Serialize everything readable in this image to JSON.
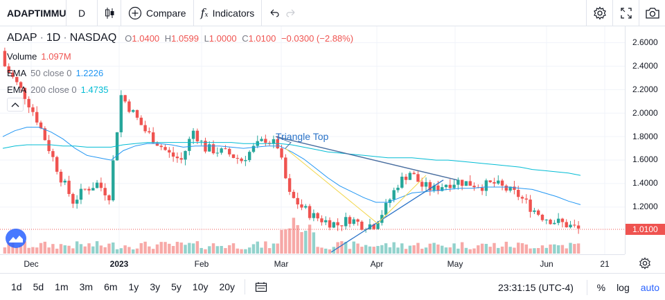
{
  "toolbar": {
    "symbol": "ADAPTIMMUNE",
    "interval": "D",
    "compare_label": "Compare",
    "indicators_label": "Indicators"
  },
  "legend": {
    "ticker": "ADAP",
    "interval": "1D",
    "exchange": "NASDAQ",
    "open_label": "O",
    "open": "1.0400",
    "high_label": "H",
    "high": "1.0599",
    "low_label": "L",
    "low": "1.0000",
    "close_label": "C",
    "close": "1.0100",
    "change": "−0.0300 (−2.88%)",
    "volume_label": "Volume",
    "volume": "1.097M",
    "ema50_label": "EMA",
    "ema50_params": "50 close 0",
    "ema50_value": "1.2226",
    "ema200_label": "EMA",
    "ema200_params": "200 close 0",
    "ema200_value": "1.4735"
  },
  "pattern_label": "Triangle Top",
  "price_axis": {
    "ticks": [
      "2.6000",
      "2.4000",
      "2.2000",
      "2.0000",
      "1.8000",
      "1.6000",
      "1.4000",
      "1.2000"
    ],
    "last_price": "1.0100"
  },
  "time_axis": {
    "ticks": [
      "Dec",
      "2023",
      "Feb",
      "Mar",
      "Apr",
      "May",
      "Jun",
      "21"
    ]
  },
  "bottom_bar": {
    "ranges": [
      "1d",
      "5d",
      "1m",
      "3m",
      "6m",
      "1y",
      "3y",
      "5y",
      "10y",
      "20y"
    ],
    "clock": "23:31:15 (UTC-4)",
    "percent_label": "%",
    "log_label": "log",
    "auto_label": "auto"
  },
  "colors": {
    "up": "#26a69a",
    "down": "#ef5350",
    "ema50": "#2196f3",
    "ema200": "#00bcd4",
    "accent": "#2962ff",
    "pattern": "#2a73c8"
  },
  "chart_data": {
    "type": "candlestick",
    "symbol": "ADAP",
    "interval": "1D",
    "ylim": [
      0.95,
      2.7
    ],
    "x": [
      "Nov 23",
      "Nov 28",
      "Dec 1",
      "Dec 5",
      "Dec 8",
      "Dec 13",
      "Dec 16",
      "Dec 21",
      "Dec 27",
      "Dec 30",
      "Jan 4",
      "Jan 9",
      "Jan 12",
      "Jan 18",
      "Jan 23",
      "Jan 26",
      "Jan 31",
      "Feb 3",
      "Feb 8",
      "Feb 13",
      "Feb 16",
      "Feb 22",
      "Feb 27",
      "Mar 2",
      "Mar 7",
      "Mar 10",
      "Mar 15",
      "Mar 20",
      "Mar 23",
      "Mar 28",
      "Mar 31",
      "Apr 5",
      "Apr 11",
      "Apr 14",
      "Apr 19",
      "Apr 24",
      "Apr 27",
      "May 2",
      "May 5",
      "May 10",
      "May 15",
      "May 18",
      "May 23",
      "May 26",
      "Jun 1",
      "Jun 6",
      "Jun 9",
      "Jun 14",
      "Jun 16"
    ],
    "close": [
      2.45,
      2.3,
      2.15,
      1.95,
      1.7,
      1.45,
      1.25,
      1.35,
      1.4,
      1.3,
      2.15,
      2.0,
      1.85,
      1.75,
      1.65,
      1.6,
      1.85,
      1.7,
      1.68,
      1.65,
      1.6,
      1.7,
      1.78,
      1.72,
      1.3,
      1.2,
      1.12,
      1.08,
      1.05,
      1.1,
      1.05,
      1.05,
      1.2,
      1.4,
      1.5,
      1.38,
      1.35,
      1.4,
      1.42,
      1.4,
      1.38,
      1.4,
      1.35,
      1.3,
      1.2,
      1.12,
      1.08,
      1.05,
      1.01
    ],
    "series": [
      {
        "name": "EMA 50",
        "values": [
          1.8,
          1.85,
          1.88,
          1.88,
          1.84,
          1.78,
          1.7,
          1.64,
          1.62,
          1.6,
          1.68,
          1.72,
          1.74,
          1.74,
          1.73,
          1.71,
          1.72,
          1.72,
          1.72,
          1.71,
          1.7,
          1.71,
          1.72,
          1.72,
          1.67,
          1.61,
          1.53,
          1.45,
          1.38,
          1.33,
          1.28,
          1.24,
          1.24,
          1.28,
          1.32,
          1.33,
          1.34,
          1.35,
          1.36,
          1.36,
          1.37,
          1.37,
          1.37,
          1.36,
          1.35,
          1.32,
          1.29,
          1.25,
          1.22
        ]
      },
      {
        "name": "EMA 200",
        "values": [
          1.7,
          1.72,
          1.73,
          1.73,
          1.73,
          1.72,
          1.72,
          1.71,
          1.71,
          1.71,
          1.73,
          1.74,
          1.75,
          1.75,
          1.75,
          1.75,
          1.75,
          1.75,
          1.75,
          1.75,
          1.74,
          1.74,
          1.74,
          1.74,
          1.73,
          1.71,
          1.69,
          1.67,
          1.66,
          1.65,
          1.64,
          1.63,
          1.62,
          1.62,
          1.62,
          1.61,
          1.6,
          1.6,
          1.59,
          1.58,
          1.57,
          1.56,
          1.55,
          1.54,
          1.52,
          1.51,
          1.5,
          1.49,
          1.47
        ]
      }
    ],
    "last_price": 1.01
  }
}
